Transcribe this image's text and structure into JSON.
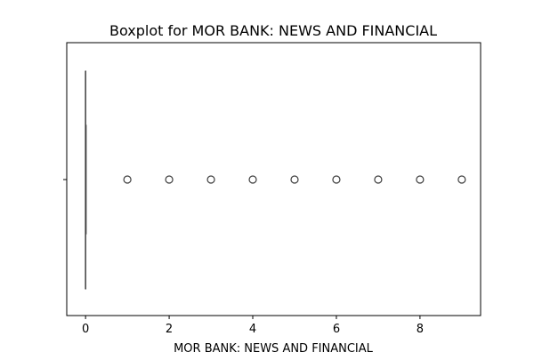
{
  "chart_data": {
    "type": "boxplot",
    "title": "Boxplot for MOR BANK: NEWS AND FINANCIAL",
    "xlabel": "MOR BANK: NEWS AND FINANCIAL",
    "ylabel": "",
    "orientation": "horizontal",
    "xlim": [
      -0.45,
      9.45
    ],
    "xticks": [
      0,
      2,
      4,
      6,
      8
    ],
    "xtick_labels": [
      "0",
      "2",
      "4",
      "6",
      "8"
    ],
    "grid": false,
    "legend": "none",
    "box": {
      "q1": 0,
      "median": 0,
      "q3": 0,
      "whisker_low": 0,
      "whisker_high": 0
    },
    "outliers": [
      1,
      2,
      3,
      4,
      5,
      6,
      7,
      8,
      9
    ]
  },
  "colors": {
    "frame": "#000000",
    "box_line": "#3d3d3d",
    "outlier_edge": "#3d3d3d",
    "background": "#ffffff"
  }
}
